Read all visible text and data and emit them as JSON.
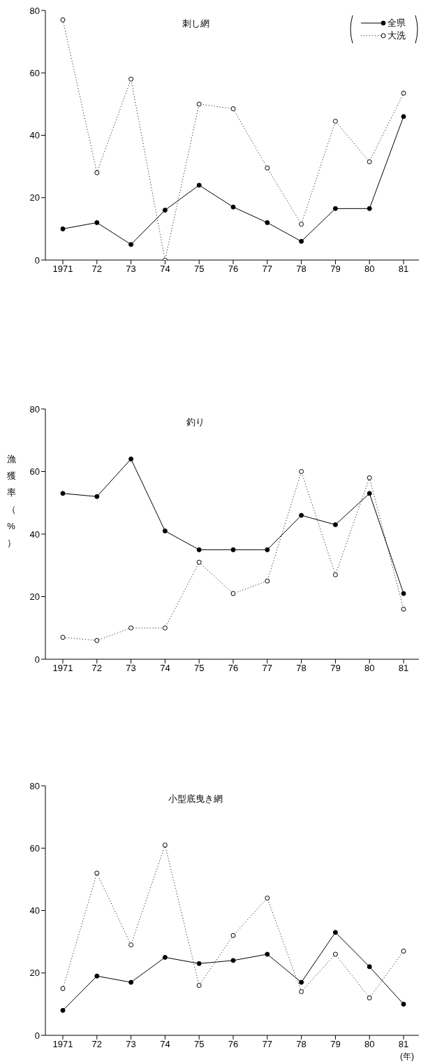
{
  "chart_data": [
    {
      "type": "line",
      "title": "刺し網",
      "categories": [
        "1971",
        "72",
        "73",
        "74",
        "75",
        "76",
        "77",
        "78",
        "79",
        "80",
        "81"
      ],
      "ylim": [
        0,
        80
      ],
      "yticks": [
        0,
        20,
        40,
        60,
        80
      ],
      "grid": false,
      "legend": "top right",
      "marker": "circle",
      "series": [
        {
          "name": "全県",
          "color": "#000000",
          "line_style": "solid",
          "values": [
            10,
            12,
            5,
            16,
            24,
            17,
            12,
            6,
            16.5,
            16.5,
            46
          ]
        },
        {
          "name": "大洗",
          "color": "#000000",
          "line_style": "dotted",
          "values": [
            77,
            28,
            58,
            0,
            50,
            48.5,
            29.5,
            11.5,
            44.5,
            31.5,
            53.5
          ]
        }
      ]
    },
    {
      "type": "line",
      "title": "釣り",
      "ylabel": "漁獲率（%）",
      "categories": [
        "1971",
        "72",
        "73",
        "74",
        "75",
        "76",
        "77",
        "78",
        "79",
        "80",
        "81"
      ],
      "ylim": [
        0,
        80
      ],
      "yticks": [
        0,
        20,
        40,
        60,
        80
      ],
      "grid": false,
      "legend": false,
      "marker": "circle",
      "series": [
        {
          "color": "#000000",
          "line_style": "solid",
          "values": [
            53,
            52,
            64,
            41,
            35,
            35,
            35,
            46,
            43,
            53,
            21
          ]
        },
        {
          "color": "#000000",
          "line_style": "dotted",
          "values": [
            7,
            6,
            10,
            10,
            31,
            21,
            25,
            60,
            27,
            58,
            16
          ]
        }
      ]
    },
    {
      "type": "line",
      "title": "小型底曳き網",
      "xlabel": "(年)",
      "categories": [
        "1971",
        "72",
        "73",
        "74",
        "75",
        "76",
        "77",
        "78",
        "79",
        "80",
        "81"
      ],
      "ylim": [
        0,
        80
      ],
      "yticks": [
        0,
        20,
        40,
        60,
        80
      ],
      "grid": false,
      "legend": false,
      "marker": "circle",
      "series": [
        {
          "color": "#000000",
          "line_style": "solid",
          "values": [
            8,
            19,
            17,
            25,
            23,
            24,
            26,
            17,
            33,
            22,
            10
          ]
        },
        {
          "color": "#000000",
          "line_style": "dotted",
          "values": [
            15,
            52,
            29,
            61,
            16,
            32,
            44,
            14,
            26,
            12,
            27
          ]
        }
      ]
    }
  ]
}
